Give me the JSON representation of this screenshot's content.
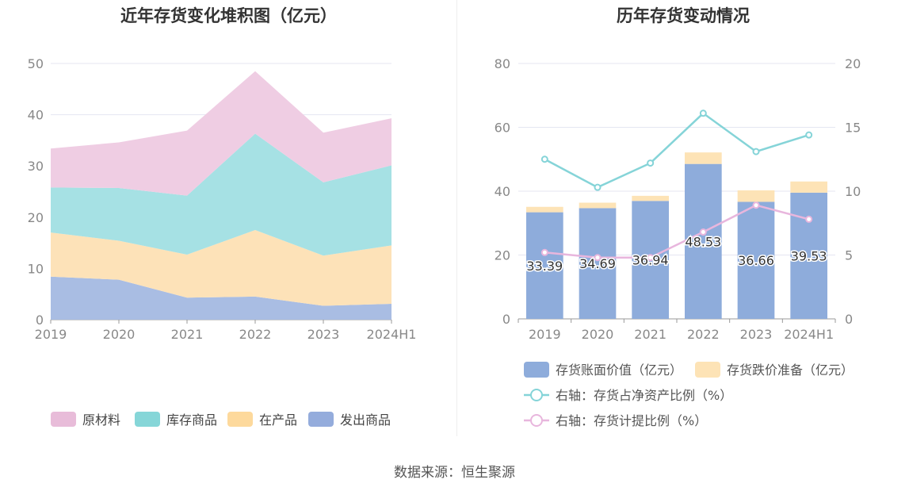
{
  "left_chart": {
    "title": "近年存货变化堆积图（亿元）",
    "legend": [
      {
        "label": "原材料",
        "color": "#e8bcd9"
      },
      {
        "label": "库存商品",
        "color": "#86d6d8"
      },
      {
        "label": "在产品",
        "color": "#fdd99c"
      },
      {
        "label": "发出商品",
        "color": "#94acdc"
      }
    ]
  },
  "right_chart": {
    "title": "历年存货变动情况",
    "legend": [
      {
        "label": "存货账面价值（亿元）",
        "color": "#8eacdb",
        "kind": "bar"
      },
      {
        "label": "存货跌价准备（亿元）",
        "color": "#fde3b6",
        "kind": "bar"
      },
      {
        "label": "右轴：存货占净资产比例（%）",
        "color": "#85d4d8",
        "kind": "line"
      },
      {
        "label": "右轴：存货计提比例（%）",
        "color": "#e8b6dd",
        "kind": "line"
      }
    ]
  },
  "footer": {
    "source": "数据来源：恒生聚源"
  },
  "chart_data": [
    {
      "type": "area",
      "stacked": true,
      "title": "近年存货变化堆积图（亿元）",
      "categories": [
        "2019",
        "2020",
        "2021",
        "2022",
        "2023",
        "2024H1"
      ],
      "ylim": [
        0,
        50
      ],
      "yticks": [
        0,
        10,
        20,
        30,
        40,
        50
      ],
      "grid": true,
      "legend_position": "bottom",
      "series": [
        {
          "name": "发出商品",
          "values": [
            8.4,
            7.8,
            4.3,
            4.5,
            2.7,
            3.1
          ],
          "color": "#a9bde3"
        },
        {
          "name": "在产品",
          "values": [
            8.6,
            7.6,
            8.4,
            13.0,
            9.8,
            11.4
          ],
          "color": "#fde2b8"
        },
        {
          "name": "库存商品",
          "values": [
            8.8,
            10.3,
            11.5,
            18.8,
            14.3,
            15.6
          ],
          "color": "#a6e1e4"
        },
        {
          "name": "原材料",
          "values": [
            7.6,
            8.9,
            12.7,
            12.2,
            9.7,
            9.2
          ],
          "color": "#efcde3"
        }
      ]
    },
    {
      "type": "bar",
      "stacked": true,
      "title": "历年存货变动情况",
      "categories": [
        "2019",
        "2020",
        "2021",
        "2022",
        "2023",
        "2024H1"
      ],
      "ylim": [
        0,
        80
      ],
      "yticks": [
        0,
        20,
        40,
        60,
        80
      ],
      "y2lim": [
        0,
        20
      ],
      "y2ticks": [
        0,
        5,
        10,
        15,
        20
      ],
      "grid": true,
      "legend_position": "bottom",
      "series": [
        {
          "name": "存货账面价值（亿元）",
          "type": "bar",
          "values": [
            33.39,
            34.69,
            36.94,
            48.53,
            36.66,
            39.53
          ],
          "color": "#8eacdb",
          "labels": [
            "33.39",
            "34.69",
            "36.94",
            "48.53",
            "36.66",
            "39.53"
          ]
        },
        {
          "name": "存货跌价准备（亿元）",
          "type": "bar",
          "values": [
            1.7,
            1.7,
            1.6,
            3.6,
            3.6,
            3.5
          ],
          "color": "#fde3b6"
        },
        {
          "name": "右轴：存货占净资产比例（%）",
          "type": "line",
          "axis": "right",
          "values": [
            12.5,
            10.3,
            12.2,
            16.1,
            13.1,
            14.4
          ],
          "color": "#85d4d8"
        },
        {
          "name": "右轴：存货计提比例（%）",
          "type": "line",
          "axis": "right",
          "values": [
            5.2,
            4.8,
            4.8,
            6.8,
            8.9,
            7.8
          ],
          "color": "#e8b6dd"
        }
      ]
    }
  ]
}
